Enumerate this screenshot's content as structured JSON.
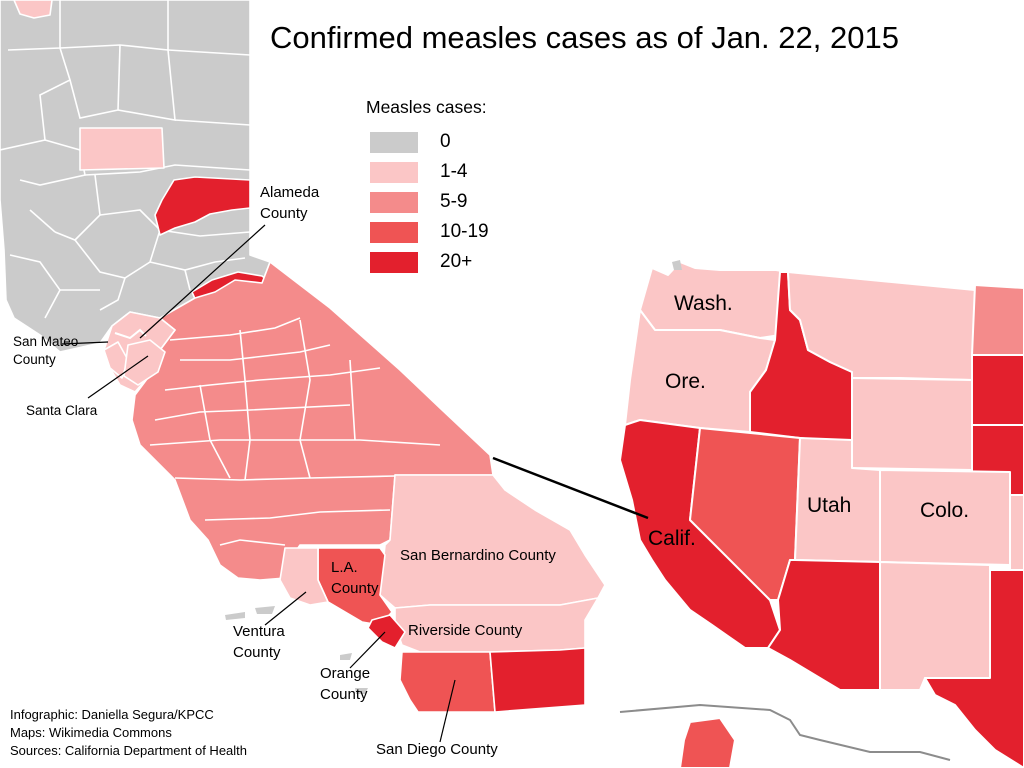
{
  "title": "Confirmed measles cases as of Jan. 22, 2015",
  "colors": {
    "none": "#cbcbcb",
    "c1_4": "#fbc6c6",
    "c5_9": "#f48b8b",
    "c10_19": "#ef5454",
    "c20_plus": "#e3202d",
    "background": "#ffffff",
    "border": "#ffffff",
    "leader_line": "#000000"
  },
  "legend": {
    "title": "Measles cases:",
    "items": [
      {
        "label": "0",
        "color": "#cbcbcb"
      },
      {
        "label": "1-4",
        "color": "#fbc6c6"
      },
      {
        "label": "5-9",
        "color": "#f48b8b"
      },
      {
        "label": "10-19",
        "color": "#ef5454"
      },
      {
        "label": "20+",
        "color": "#e3202d"
      }
    ]
  },
  "county_labels": {
    "alameda": [
      "Alameda",
      "County"
    ],
    "san_mateo": [
      "San Mateo",
      "County"
    ],
    "santa_clara": "Santa Clara",
    "san_bernardino": "San Bernardino County",
    "la": [
      "L.A.",
      "County"
    ],
    "ventura": [
      "Ventura",
      "County"
    ],
    "orange": [
      "Orange",
      "County"
    ],
    "riverside": "Riverside County",
    "san_diego": "San Diego County"
  },
  "state_labels": {
    "wash": "Wash.",
    "ore": "Ore.",
    "calif": "Calif.",
    "utah": "Utah",
    "colo": "Colo."
  },
  "counties": [
    {
      "name": "Alameda County",
      "bin": "20+"
    },
    {
      "name": "San Mateo County",
      "bin": "1-4"
    },
    {
      "name": "Santa Clara",
      "bin": "1-4"
    },
    {
      "name": "L.A. County",
      "bin": "10-19"
    },
    {
      "name": "Ventura County",
      "bin": "1-4"
    },
    {
      "name": "Orange County",
      "bin": "20+"
    },
    {
      "name": "San Bernardino County",
      "bin": "1-4"
    },
    {
      "name": "Riverside County",
      "bin": "1-4"
    },
    {
      "name": "San Diego County",
      "bin": "10-19"
    }
  ],
  "states": [
    {
      "name": "Wash.",
      "bin": "1-4"
    },
    {
      "name": "Ore.",
      "bin": "1-4"
    },
    {
      "name": "Calif.",
      "bin": "20+"
    },
    {
      "name": "Utah",
      "bin": "1-4"
    },
    {
      "name": "Colo.",
      "bin": "1-4"
    }
  ],
  "credits": [
    "Infographic: Daniella Segura/KPCC",
    "Maps: Wikimedia Commons",
    "Sources: California Department of Health"
  ]
}
